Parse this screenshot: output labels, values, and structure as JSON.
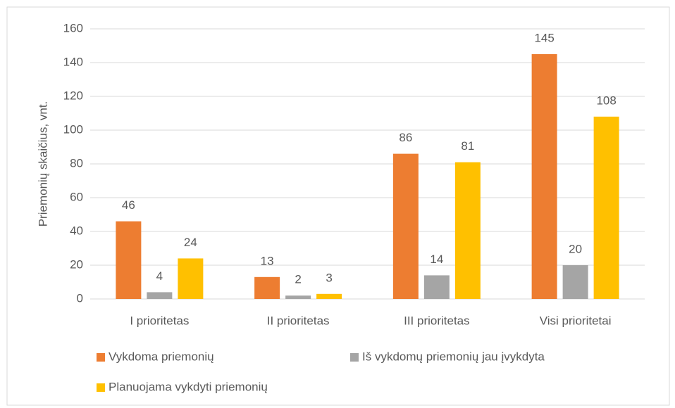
{
  "chart_data": {
    "type": "bar",
    "y_label": "Priemonių skaičius, vnt.",
    "categories": [
      "I prioritetas",
      "II prioritetas",
      "III prioritetas",
      "Visi prioritetai"
    ],
    "series": [
      {
        "name": "Vykdoma priemonių",
        "color": "#ed7d31",
        "values": [
          46,
          13,
          86,
          145
        ]
      },
      {
        "name": "Iš vykdomų priemonių jau įvykdyta",
        "color": "#a5a5a5",
        "values": [
          4,
          2,
          14,
          20
        ]
      },
      {
        "name": "Planuojama vykdyti priemonių",
        "color": "#ffc000",
        "values": [
          24,
          3,
          81,
          108
        ]
      }
    ],
    "ylim": [
      0,
      160
    ],
    "yticks": [
      0,
      20,
      40,
      60,
      80,
      100,
      120,
      140,
      160
    ],
    "grid": true
  }
}
